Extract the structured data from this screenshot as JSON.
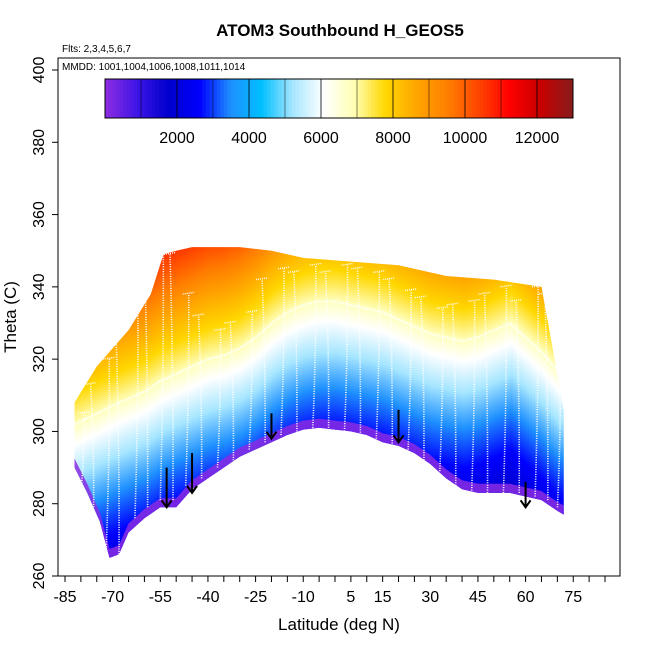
{
  "chart_data": {
    "type": "heatmap",
    "title": "ATOM3 Southbound H_GEOS5",
    "flights_label": "Flts: 2,3,4,5,6,7",
    "mmdd_label": "MMDD: 1001,1004,1006,1008,1011,1014",
    "xlabel": "Latitude (deg N)",
    "ylabel": "Theta (C)",
    "xlim": [
      -85,
      85
    ],
    "ylim": [
      260,
      400
    ],
    "x_ticks": [
      -85,
      -70,
      -55,
      -40,
      -25,
      -10,
      5,
      15,
      30,
      45,
      60,
      75
    ],
    "y_ticks": [
      260,
      280,
      300,
      320,
      340,
      360,
      380,
      400
    ],
    "colorbar": {
      "min": 0,
      "max": 13000,
      "ticks": [
        2000,
        4000,
        6000,
        8000,
        10000,
        12000
      ],
      "colors": [
        "#8a2be2",
        "#3c14e6",
        "#0000cd",
        "#0000ff",
        "#1e90ff",
        "#00bfff",
        "#a6e6ff",
        "#ffffff",
        "#ffffb4",
        "#ffd700",
        "#ffa500",
        "#ff7f00",
        "#ff4500",
        "#ff0000",
        "#c80000",
        "#8b1a1a"
      ]
    },
    "surface_theta": [
      {
        "lat": -82,
        "theta": 290
      },
      {
        "lat": -78,
        "theta": 283
      },
      {
        "lat": -74,
        "theta": 275
      },
      {
        "lat": -71,
        "theta": 265
      },
      {
        "lat": -68,
        "theta": 266
      },
      {
        "lat": -65,
        "theta": 272
      },
      {
        "lat": -60,
        "theta": 276
      },
      {
        "lat": -55,
        "theta": 279
      },
      {
        "lat": -50,
        "theta": 279
      },
      {
        "lat": -45,
        "theta": 284
      },
      {
        "lat": -40,
        "theta": 287
      },
      {
        "lat": -35,
        "theta": 290
      },
      {
        "lat": -30,
        "theta": 293
      },
      {
        "lat": -25,
        "theta": 295
      },
      {
        "lat": -20,
        "theta": 297
      },
      {
        "lat": -15,
        "theta": 299
      },
      {
        "lat": -10,
        "theta": 300.5
      },
      {
        "lat": -5,
        "theta": 301
      },
      {
        "lat": 0,
        "theta": 300.5
      },
      {
        "lat": 5,
        "theta": 300
      },
      {
        "lat": 10,
        "theta": 299
      },
      {
        "lat": 15,
        "theta": 297
      },
      {
        "lat": 20,
        "theta": 296
      },
      {
        "lat": 25,
        "theta": 294
      },
      {
        "lat": 30,
        "theta": 291
      },
      {
        "lat": 35,
        "theta": 287
      },
      {
        "lat": 40,
        "theta": 284
      },
      {
        "lat": 45,
        "theta": 283
      },
      {
        "lat": 50,
        "theta": 283
      },
      {
        "lat": 55,
        "theta": 283
      },
      {
        "lat": 60,
        "theta": 282
      },
      {
        "lat": 65,
        "theta": 281
      },
      {
        "lat": 70,
        "theta": 278
      },
      {
        "lat": 72,
        "theta": 277
      }
    ],
    "top_theta": [
      {
        "lat": -82,
        "theta": 308
      },
      {
        "lat": -75,
        "theta": 318
      },
      {
        "lat": -65,
        "theta": 328
      },
      {
        "lat": -58,
        "theta": 338
      },
      {
        "lat": -54,
        "theta": 349
      },
      {
        "lat": -50,
        "theta": 350
      },
      {
        "lat": -45,
        "theta": 351
      },
      {
        "lat": -30,
        "theta": 351
      },
      {
        "lat": -20,
        "theta": 350
      },
      {
        "lat": -10,
        "theta": 348
      },
      {
        "lat": 5,
        "theta": 347
      },
      {
        "lat": 20,
        "theta": 346
      },
      {
        "lat": 35,
        "theta": 343
      },
      {
        "lat": 50,
        "theta": 342
      },
      {
        "lat": 65,
        "theta": 340
      },
      {
        "lat": 72,
        "theta": 306
      }
    ],
    "tropopause_theta": [
      {
        "lat": -82,
        "theta": 302
      },
      {
        "lat": -75,
        "theta": 305
      },
      {
        "lat": -68,
        "theta": 308
      },
      {
        "lat": -60,
        "theta": 311
      },
      {
        "lat": -55,
        "theta": 314
      },
      {
        "lat": -50,
        "theta": 316
      },
      {
        "lat": -45,
        "theta": 318
      },
      {
        "lat": -40,
        "theta": 320
      },
      {
        "lat": -35,
        "theta": 321
      },
      {
        "lat": -30,
        "theta": 323
      },
      {
        "lat": -25,
        "theta": 326
      },
      {
        "lat": -20,
        "theta": 330
      },
      {
        "lat": -15,
        "theta": 333
      },
      {
        "lat": -10,
        "theta": 335
      },
      {
        "lat": -5,
        "theta": 336
      },
      {
        "lat": 0,
        "theta": 336
      },
      {
        "lat": 5,
        "theta": 335
      },
      {
        "lat": 10,
        "theta": 334
      },
      {
        "lat": 15,
        "theta": 333
      },
      {
        "lat": 20,
        "theta": 331
      },
      {
        "lat": 25,
        "theta": 329
      },
      {
        "lat": 30,
        "theta": 327
      },
      {
        "lat": 35,
        "theta": 326
      },
      {
        "lat": 40,
        "theta": 325
      },
      {
        "lat": 45,
        "theta": 326
      },
      {
        "lat": 50,
        "theta": 328
      },
      {
        "lat": 55,
        "theta": 330
      },
      {
        "lat": 60,
        "theta": 326
      },
      {
        "lat": 65,
        "theta": 322
      },
      {
        "lat": 70,
        "theta": 317
      }
    ],
    "profiles": [
      {
        "lat": -80,
        "min": 283,
        "max": 305
      },
      {
        "lat": -76,
        "min": 279,
        "max": 313
      },
      {
        "lat": -72,
        "min": 268,
        "max": 320
      },
      {
        "lat": -68,
        "min": 266,
        "max": 327
      },
      {
        "lat": -63,
        "min": 276,
        "max": 336
      },
      {
        "lat": -59,
        "min": 279,
        "max": 347
      },
      {
        "lat": -55,
        "min": 281,
        "max": 352
      },
      {
        "lat": -51,
        "min": 281,
        "max": 349
      },
      {
        "lat": -47,
        "min": 285,
        "max": 338
      },
      {
        "lat": -42,
        "min": 287,
        "max": 332
      },
      {
        "lat": -37,
        "min": 290,
        "max": 328
      },
      {
        "lat": -32,
        "min": 292,
        "max": 330
      },
      {
        "lat": -27,
        "min": 295,
        "max": 333
      },
      {
        "lat": -22,
        "min": 297,
        "max": 342
      },
      {
        "lat": -17,
        "min": 299,
        "max": 345
      },
      {
        "lat": -12,
        "min": 300,
        "max": 344
      },
      {
        "lat": -7,
        "min": 301,
        "max": 346
      },
      {
        "lat": -2,
        "min": 301,
        "max": 344
      },
      {
        "lat": 3,
        "min": 300,
        "max": 346
      },
      {
        "lat": 8,
        "min": 299,
        "max": 345
      },
      {
        "lat": 13,
        "min": 298,
        "max": 344
      },
      {
        "lat": 18,
        "min": 296,
        "max": 342
      },
      {
        "lat": 23,
        "min": 295,
        "max": 339
      },
      {
        "lat": 28,
        "min": 292,
        "max": 337
      },
      {
        "lat": 33,
        "min": 289,
        "max": 334
      },
      {
        "lat": 38,
        "min": 285,
        "max": 335
      },
      {
        "lat": 43,
        "min": 283,
        "max": 336
      },
      {
        "lat": 48,
        "min": 283,
        "max": 338
      },
      {
        "lat": 53,
        "min": 283,
        "max": 340
      },
      {
        "lat": 58,
        "min": 283,
        "max": 336
      },
      {
        "lat": 63,
        "min": 282,
        "max": 340
      },
      {
        "lat": 67,
        "min": 281,
        "max": 338
      },
      {
        "lat": 70,
        "min": 279,
        "max": 320
      }
    ],
    "arrows": [
      {
        "lat": -53,
        "theta_top": 290,
        "theta_tip": 279
      },
      {
        "lat": -45,
        "theta_top": 294,
        "theta_tip": 283
      },
      {
        "lat": -20,
        "theta_top": 305,
        "theta_tip": 298
      },
      {
        "lat": 20,
        "theta_top": 306,
        "theta_tip": 297
      },
      {
        "lat": 60,
        "theta_top": 286,
        "theta_tip": 279
      }
    ]
  }
}
